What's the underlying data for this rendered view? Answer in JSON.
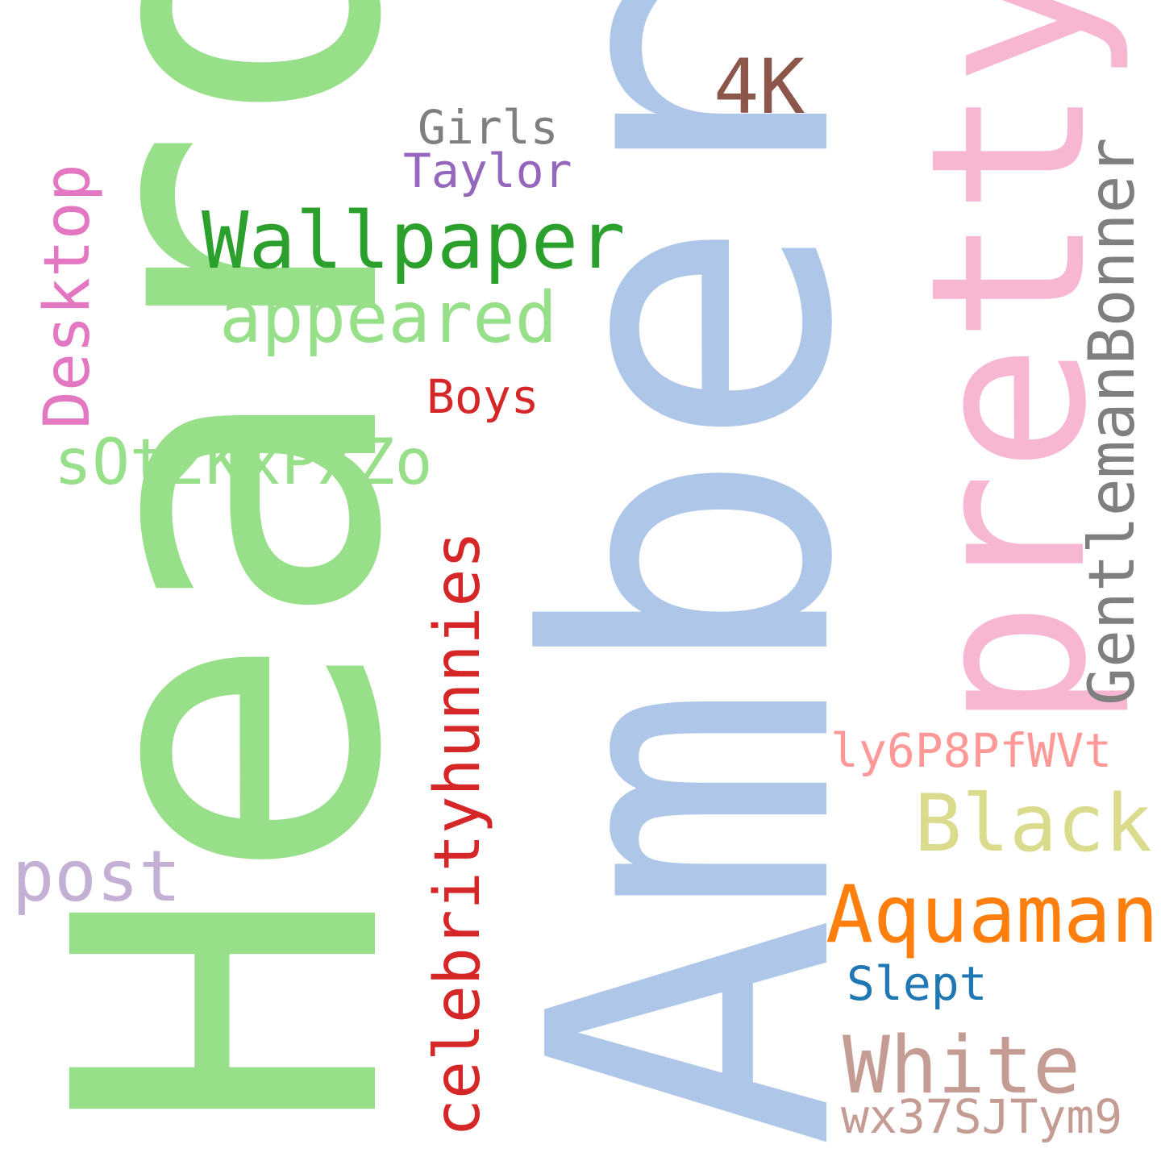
{
  "words": [
    {
      "text": "Heard",
      "color": "#98df8a"
    },
    {
      "text": "Amber",
      "color": "#aec7e8"
    },
    {
      "text": "pretty",
      "color": "#f7b6d2"
    },
    {
      "text": "Wallpaper",
      "color": "#2ca02c"
    },
    {
      "text": "4K",
      "color": "#8c564b"
    },
    {
      "text": "Girls",
      "color": "#7f7f7f"
    },
    {
      "text": "Taylor",
      "color": "#9467bd"
    },
    {
      "text": "appeared",
      "color": "#98df8a"
    },
    {
      "text": "Desktop",
      "color": "#e377c2"
    },
    {
      "text": "Boys",
      "color": "#d62728"
    },
    {
      "text": "sOt2KxPXZo",
      "color": "#98df8a"
    },
    {
      "text": "GentlemanBonner",
      "color": "#7f7f7f"
    },
    {
      "text": "celebrityhunnies",
      "color": "#d62728"
    },
    {
      "text": "ly6P8PfWVt",
      "color": "#ff9896"
    },
    {
      "text": "Black",
      "color": "#dbdb8d"
    },
    {
      "text": "post",
      "color": "#c5b0d5"
    },
    {
      "text": "Aquaman",
      "color": "#ff7f0e"
    },
    {
      "text": "Slept",
      "color": "#1f77b4"
    },
    {
      "text": "White",
      "color": "#c49c94"
    },
    {
      "text": "wx37SJTym9",
      "color": "#c49c94"
    }
  ]
}
